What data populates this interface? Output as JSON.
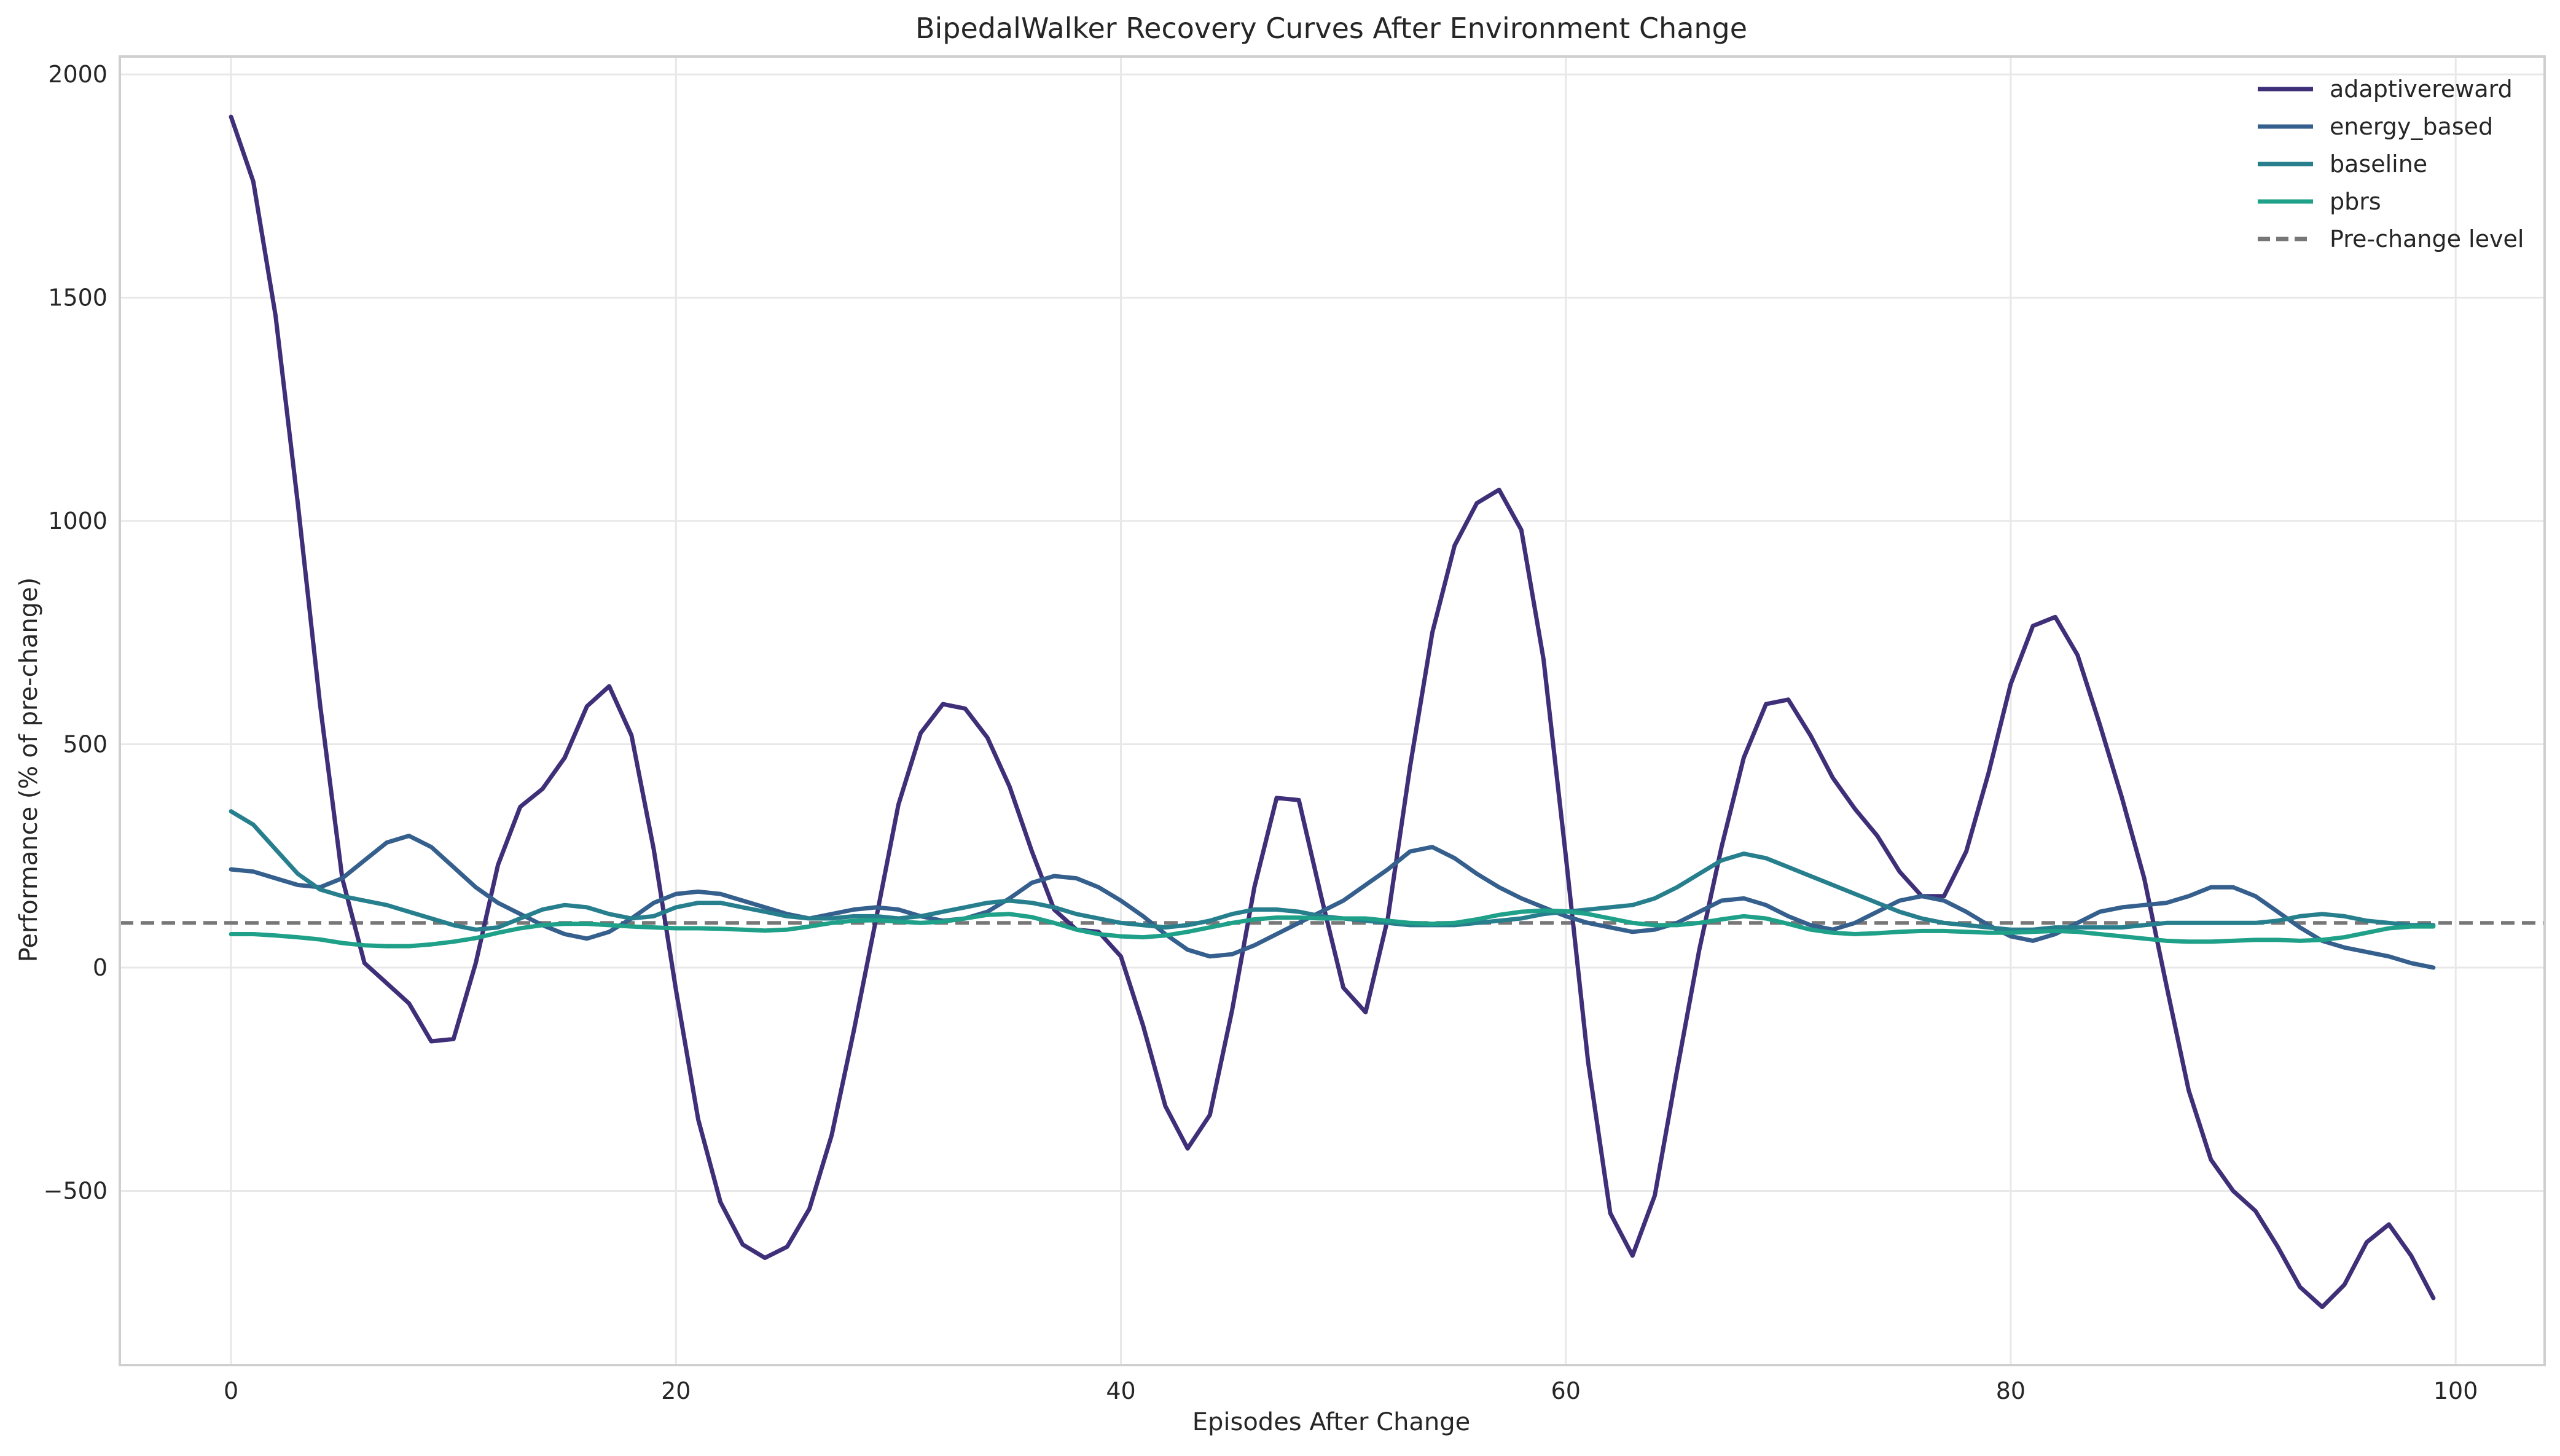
{
  "chart_data": {
    "type": "line",
    "title": "BipedalWalker Recovery Curves After Environment Change",
    "xlabel": "Episodes After Change",
    "ylabel": "Performance (% of pre-change)",
    "xlim": [
      -5,
      104
    ],
    "ylim": [
      -890,
      2040
    ],
    "xticks": [
      0,
      20,
      40,
      60,
      80,
      100
    ],
    "yticks": [
      -500,
      0,
      500,
      1000,
      1500,
      2000
    ],
    "xtick_labels": [
      "0",
      "20",
      "40",
      "60",
      "80",
      "100"
    ],
    "ytick_labels": [
      "−500",
      "0",
      "500",
      "1000",
      "1500",
      "2000"
    ],
    "grid": true,
    "legend_position": "top-right",
    "reference_line": {
      "name": "Pre-change level",
      "y": 100,
      "color": "#777777",
      "style": "dashed"
    },
    "series": [
      {
        "name": "adaptivereward",
        "color": "#3f2f78",
        "values": [
          1905,
          1760,
          1460,
          1040,
          590,
          200,
          10,
          -35,
          -80,
          -165,
          -160,
          10,
          230,
          360,
          400,
          470,
          585,
          630,
          520,
          265,
          -50,
          -340,
          -525,
          -620,
          -650,
          -625,
          -540,
          -375,
          -140,
          110,
          365,
          525,
          590,
          580,
          515,
          405,
          260,
          130,
          85,
          80,
          25,
          -130,
          -310,
          -405,
          -330,
          -95,
          180,
          380,
          375,
          160,
          -45,
          -100,
          110,
          450,
          750,
          945,
          1040,
          1070,
          980,
          690,
          250,
          -210,
          -550,
          -645,
          -510,
          -230,
          40,
          270,
          470,
          590,
          600,
          520,
          425,
          355,
          295,
          215,
          160,
          160,
          260,
          435,
          635,
          765,
          785,
          700,
          545,
          380,
          200,
          -40,
          -275,
          -430,
          -500,
          -545,
          -625,
          -715,
          -760,
          -710,
          -615,
          -575,
          -645,
          -740
        ]
      },
      {
        "name": "energy_based",
        "color": "#355f8d",
        "values": [
          220,
          215,
          200,
          185,
          180,
          200,
          240,
          280,
          295,
          270,
          225,
          180,
          145,
          120,
          95,
          75,
          65,
          80,
          110,
          145,
          165,
          170,
          165,
          150,
          135,
          120,
          110,
          120,
          130,
          135,
          130,
          115,
          105,
          110,
          125,
          155,
          190,
          205,
          200,
          180,
          150,
          115,
          75,
          40,
          25,
          30,
          50,
          75,
          100,
          125,
          150,
          185,
          220,
          260,
          270,
          245,
          210,
          180,
          155,
          135,
          115,
          100,
          90,
          80,
          85,
          100,
          125,
          150,
          155,
          140,
          115,
          95,
          85,
          100,
          125,
          150,
          160,
          150,
          125,
          95,
          70,
          60,
          75,
          100,
          125,
          135,
          140,
          145,
          160,
          180,
          180,
          160,
          125,
          90,
          60,
          45,
          35,
          25,
          10,
          0
        ]
      },
      {
        "name": "baseline",
        "color": "#277f8e",
        "values": [
          350,
          320,
          265,
          210,
          175,
          160,
          150,
          140,
          125,
          110,
          95,
          85,
          90,
          110,
          130,
          140,
          135,
          120,
          110,
          115,
          135,
          145,
          145,
          135,
          125,
          115,
          110,
          110,
          115,
          115,
          110,
          115,
          125,
          135,
          145,
          150,
          145,
          135,
          120,
          110,
          100,
          95,
          90,
          95,
          105,
          120,
          130,
          130,
          125,
          115,
          110,
          105,
          100,
          95,
          95,
          95,
          100,
          105,
          110,
          120,
          125,
          130,
          135,
          140,
          155,
          180,
          210,
          240,
          255,
          245,
          225,
          205,
          185,
          165,
          145,
          125,
          110,
          100,
          95,
          90,
          85,
          85,
          90,
          90,
          90,
          90,
          95,
          100,
          100,
          100,
          100,
          100,
          105,
          115,
          120,
          115,
          105,
          100,
          95,
          95
        ]
      },
      {
        "name": "pbrs",
        "color": "#1fa088",
        "values": [
          75,
          75,
          72,
          68,
          63,
          55,
          50,
          48,
          48,
          52,
          58,
          66,
          78,
          88,
          95,
          98,
          98,
          95,
          92,
          90,
          88,
          88,
          87,
          85,
          83,
          85,
          92,
          100,
          105,
          106,
          103,
          100,
          103,
          110,
          118,
          120,
          113,
          100,
          85,
          75,
          70,
          68,
          72,
          80,
          90,
          100,
          108,
          112,
          112,
          110,
          110,
          110,
          105,
          100,
          98,
          100,
          108,
          118,
          125,
          128,
          126,
          120,
          110,
          100,
          95,
          95,
          100,
          108,
          115,
          110,
          98,
          85,
          78,
          75,
          77,
          80,
          82,
          82,
          80,
          78,
          78,
          80,
          82,
          80,
          75,
          70,
          65,
          60,
          58,
          58,
          60,
          62,
          62,
          60,
          62,
          68,
          78,
          88,
          92,
          92
        ]
      }
    ]
  }
}
